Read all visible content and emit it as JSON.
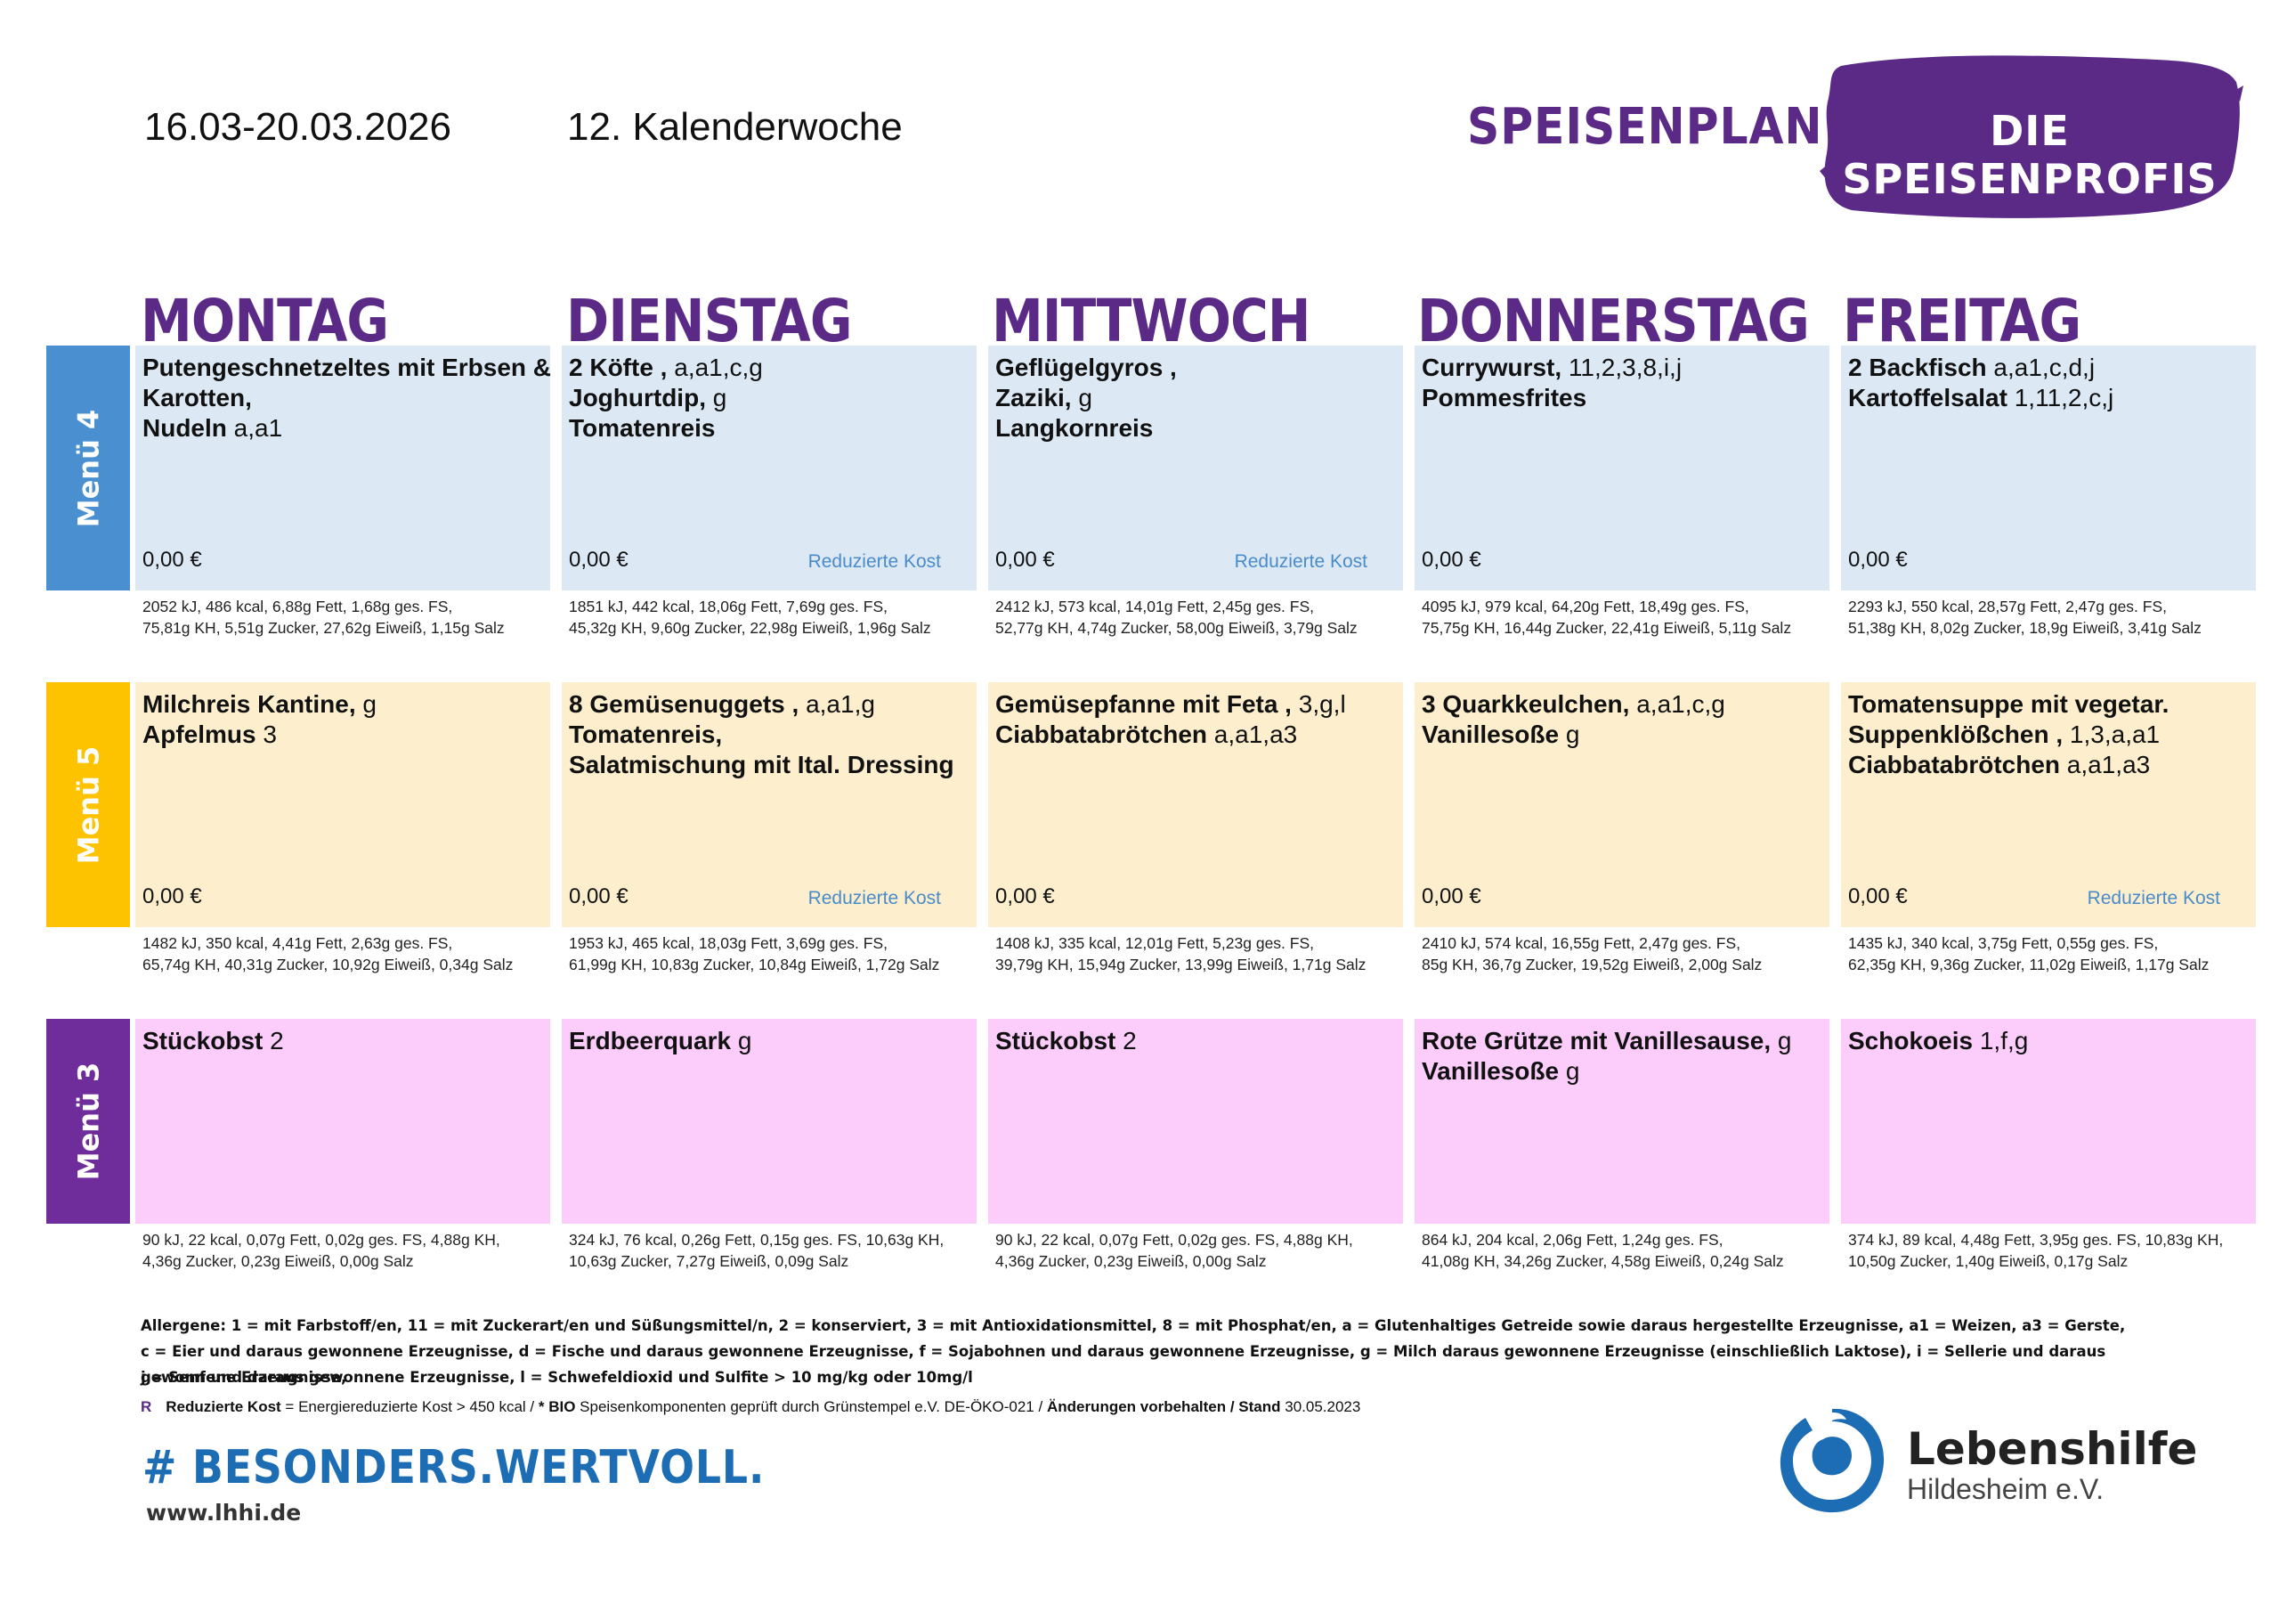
{
  "header": {
    "date_range": "16.03-20.03.2026",
    "week": "12. Kalenderwoche",
    "title": "SPEISENPLAN",
    "brand": "DIE SPEISENPROFIS"
  },
  "days": [
    "MONTAG",
    "DIENSTAG",
    "MITTWOCH",
    "DONNERSTAG",
    "FREITAG"
  ],
  "colors": {
    "purple": "#5b2a86",
    "menu4_label": "#4a90d0",
    "menu4_cell": "#dce9f5",
    "menu5_label": "#fdc300",
    "menu5_cell": "#fdefce",
    "menu3_label": "#6f2d9c",
    "menu3_cell": "#fccdfb",
    "reduced_text": "#4a8bc9",
    "hashtag": "#1d6db5"
  },
  "menus": [
    {
      "label": "Menü 4",
      "cells": [
        {
          "lines": [
            [
              {
                "t": "Putengeschnetzeltes mit Erbsen &",
                "b": true
              }
            ],
            [
              {
                "t": "Karotten,",
                "b": true
              }
            ],
            [
              {
                "t": " Nudeln",
                "b": true
              },
              {
                "t": " a,a1",
                "b": false
              }
            ]
          ],
          "price": "0,00 €",
          "reduced": "",
          "nutrition": [
            "2052 kJ, 486 kcal, 6,88g Fett, 1,68g ges. FS,",
            "75,81g KH, 5,51g Zucker, 27,62g Eiweiß, 1,15g Salz"
          ]
        },
        {
          "lines": [
            [
              {
                "t": "2 Köfte ,",
                "b": true
              },
              {
                "t": " a,a1,c,g",
                "b": false
              }
            ],
            [
              {
                "t": "Joghurtdip,",
                "b": true
              },
              {
                "t": " g",
                "b": false
              }
            ],
            [
              {
                "t": "Tomatenreis",
                "b": true
              }
            ]
          ],
          "price": "0,00 €",
          "reduced": "Reduzierte Kost",
          "nutrition": [
            "1851 kJ, 442 kcal, 18,06g Fett, 7,69g ges. FS,",
            "45,32g KH, 9,60g Zucker, 22,98g Eiweiß, 1,96g Salz"
          ]
        },
        {
          "lines": [
            [
              {
                "t": "Geflügelgyros ,",
                "b": true
              }
            ],
            [
              {
                "t": "Zaziki,",
                "b": true
              },
              {
                "t": " g",
                "b": false
              }
            ],
            [
              {
                "t": "Langkornreis",
                "b": true
              }
            ]
          ],
          "price": "0,00 €",
          "reduced": "Reduzierte Kost",
          "nutrition": [
            "2412 kJ, 573 kcal, 14,01g Fett, 2,45g ges. FS,",
            "52,77g KH, 4,74g Zucker, 58,00g Eiweiß, 3,79g Salz"
          ]
        },
        {
          "lines": [
            [
              {
                "t": "Currywurst,",
                "b": true
              },
              {
                "t": " 11,2,3,8,i,j",
                "b": false
              }
            ],
            [
              {
                "t": "Pommesfrites",
                "b": true
              }
            ]
          ],
          "price": "0,00 €",
          "reduced": "",
          "nutrition": [
            "4095 kJ, 979 kcal, 64,20g Fett, 18,49g ges. FS,",
            "75,75g KH, 16,44g Zucker, 22,41g Eiweiß, 5,11g Salz"
          ]
        },
        {
          "lines": [
            [
              {
                "t": "2 Backfisch",
                "b": true
              },
              {
                "t": "  a,a1,c,d,j",
                "b": false
              }
            ],
            [
              {
                "t": "Kartoffelsalat",
                "b": true
              },
              {
                "t": "  1,11,2,c,j",
                "b": false
              }
            ]
          ],
          "price": "0,00 €",
          "reduced": "",
          "nutrition": [
            "2293 kJ, 550 kcal, 28,57g Fett, 2,47g ges. FS,",
            "51,38g KH, 8,02g Zucker, 18,9g Eiweiß, 3,41g Salz"
          ]
        }
      ]
    },
    {
      "label": "Menü 5",
      "cells": [
        {
          "lines": [
            [
              {
                "t": "Milchreis Kantine,",
                "b": true
              },
              {
                "t": " g",
                "b": false
              }
            ],
            [
              {
                "t": "Apfelmus",
                "b": true
              },
              {
                "t": " 3",
                "b": false
              }
            ]
          ],
          "price": "0,00 €",
          "reduced": "",
          "nutrition": [
            "1482 kJ, 350 kcal, 4,41g Fett, 2,63g ges. FS,",
            "65,74g KH, 40,31g Zucker, 10,92g Eiweiß, 0,34g Salz"
          ]
        },
        {
          "lines": [
            [
              {
                "t": "8 Gemüsenuggets ,",
                "b": true
              },
              {
                "t": " a,a1,g",
                "b": false
              }
            ],
            [
              {
                "t": "Tomatenreis,",
                "b": true
              }
            ],
            [
              {
                "t": "Salatmischung mit Ital. Dressing",
                "b": true
              }
            ]
          ],
          "price": "0,00 €",
          "reduced": "Reduzierte Kost",
          "nutrition": [
            "1953 kJ, 465 kcal, 18,03g Fett, 3,69g ges. FS,",
            "61,99g KH, 10,83g Zucker, 10,84g Eiweiß, 1,72g Salz"
          ]
        },
        {
          "lines": [
            [
              {
                "t": "Gemüsepfanne mit Feta ,",
                "b": true
              },
              {
                "t": " 3,g,l",
                "b": false
              }
            ],
            [
              {
                "t": "Ciabbatabrötchen",
                "b": true
              },
              {
                "t": " a,a1,a3",
                "b": false
              }
            ]
          ],
          "price": "0,00 €",
          "reduced": "",
          "nutrition": [
            "1408 kJ, 335 kcal, 12,01g Fett, 5,23g ges. FS,",
            "39,79g KH, 15,94g Zucker, 13,99g Eiweiß, 1,71g Salz"
          ]
        },
        {
          "lines": [
            [
              {
                "t": "3 Quarkkeulchen,",
                "b": true
              },
              {
                "t": " a,a1,c,g",
                "b": false
              }
            ],
            [
              {
                "t": "Vanillesoße",
                "b": true
              },
              {
                "t": " g",
                "b": false
              }
            ]
          ],
          "price": "0,00 €",
          "reduced": "",
          "nutrition": [
            "2410 kJ, 574 kcal, 16,55g Fett, 2,47g ges. FS,",
            "85g KH, 36,7g Zucker, 19,52g Eiweiß, 2,00g Salz"
          ]
        },
        {
          "lines": [
            [
              {
                "t": "Tomatensuppe mit vegetar.",
                "b": true
              }
            ],
            [
              {
                "t": "Suppenklößchen ,",
                "b": true
              },
              {
                "t": " 1,3,a,a1",
                "b": false
              }
            ],
            [
              {
                "t": "Ciabbatabrötchen",
                "b": true
              },
              {
                "t": " a,a1,a3",
                "b": false
              }
            ]
          ],
          "price": "0,00 €",
          "reduced": "Reduzierte Kost",
          "nutrition": [
            "1435 kJ, 340 kcal, 3,75g Fett, 0,55g ges. FS,",
            "62,35g KH, 9,36g Zucker, 11,02g Eiweiß, 1,17g Salz"
          ]
        }
      ]
    },
    {
      "label": "Menü 3",
      "cells": [
        {
          "lines": [
            [
              {
                "t": "Stückobst",
                "b": true
              },
              {
                "t": " 2",
                "b": false
              }
            ]
          ],
          "price": "",
          "reduced": "",
          "nutrition": [
            "90 kJ, 22 kcal, 0,07g Fett, 0,02g ges. FS, 4,88g KH,",
            "4,36g Zucker, 0,23g Eiweiß, 0,00g Salz"
          ]
        },
        {
          "lines": [
            [
              {
                "t": "Erdbeerquark",
                "b": true
              },
              {
                "t": " g",
                "b": false
              }
            ]
          ],
          "price": "",
          "reduced": "",
          "nutrition": [
            "324 kJ, 76 kcal, 0,26g Fett, 0,15g ges. FS, 10,63g KH,",
            "10,63g Zucker, 7,27g Eiweiß, 0,09g Salz"
          ]
        },
        {
          "lines": [
            [
              {
                "t": "Stückobst",
                "b": true
              },
              {
                "t": " 2",
                "b": false
              }
            ]
          ],
          "price": "",
          "reduced": "",
          "nutrition": [
            "90 kJ, 22 kcal, 0,07g Fett, 0,02g ges. FS, 4,88g KH,",
            "4,36g Zucker, 0,23g Eiweiß, 0,00g Salz"
          ]
        },
        {
          "lines": [
            [
              {
                "t": "Rote Grütze mit Vanillesause,",
                "b": true
              },
              {
                "t": " g",
                "b": false
              }
            ],
            [
              {
                "t": "Vanillesoße",
                "b": true
              },
              {
                "t": " g",
                "b": false
              }
            ]
          ],
          "price": "",
          "reduced": "",
          "nutrition": [
            "864 kJ, 204 kcal, 2,06g Fett, 1,24g ges. FS,",
            "41,08g KH, 34,26g Zucker, 4,58g Eiweiß, 0,24g Salz"
          ]
        },
        {
          "lines": [
            [
              {
                "t": "Schokoeis",
                "b": true
              },
              {
                "t": "  1,f,g",
                "b": false
              }
            ]
          ],
          "price": "",
          "reduced": "",
          "nutrition": [
            "374 kJ, 89 kcal, 4,48g Fett, 3,95g ges. FS, 10,83g KH,",
            "10,50g Zucker, 1,40g Eiweiß, 0,17g Salz"
          ]
        }
      ]
    }
  ],
  "allergens": [
    "Allergene: 1 = mit Farbstoff/en, 11 = mit Zuckerart/en und Süßungsmittel/n, 2 = konserviert, 3 = mit Antioxidationsmittel, 8 = mit Phosphat/en, a = Glutenhaltiges Getreide sowie daraus hergestellte Erzeugnisse, a1 = Weizen, a3 = Gerste,",
    "c = Eier und daraus gewonnene Erzeugnisse, d = Fische und daraus gewonnene Erzeugnisse, f = Sojabohnen und daraus gewonnene Erzeugnisse, g = Milch daraus gewonnene Erzeugnisse (einschließlich Laktose), i = Sellerie und daraus gewonnene Erzeugnisse,",
    "j = Senf und daraus gewonnene Erzeugnisse, l = Schwefeldioxid und Sulfite > 10 mg/kg oder 10mg/l"
  ],
  "legend": {
    "marker": "R",
    "reduced_label": "Reduzierte Kost",
    "reduced_desc": " = Energiereduzierte Kost > 450 kcal / ",
    "bio_label": "* BIO",
    "bio_desc": " Speisenkomponenten geprüft durch Grünstempel e.V. DE-ÖKO-021 / ",
    "changes": "Änderungen vorbehalten / Stand",
    "stand_date": " 30.05.2023"
  },
  "footer": {
    "hashtag": "# BESONDERS.WERTVOLL.",
    "website": "www.lhhi.de",
    "org_name": "Lebenshilfe",
    "org_sub": "Hildesheim e.V."
  }
}
